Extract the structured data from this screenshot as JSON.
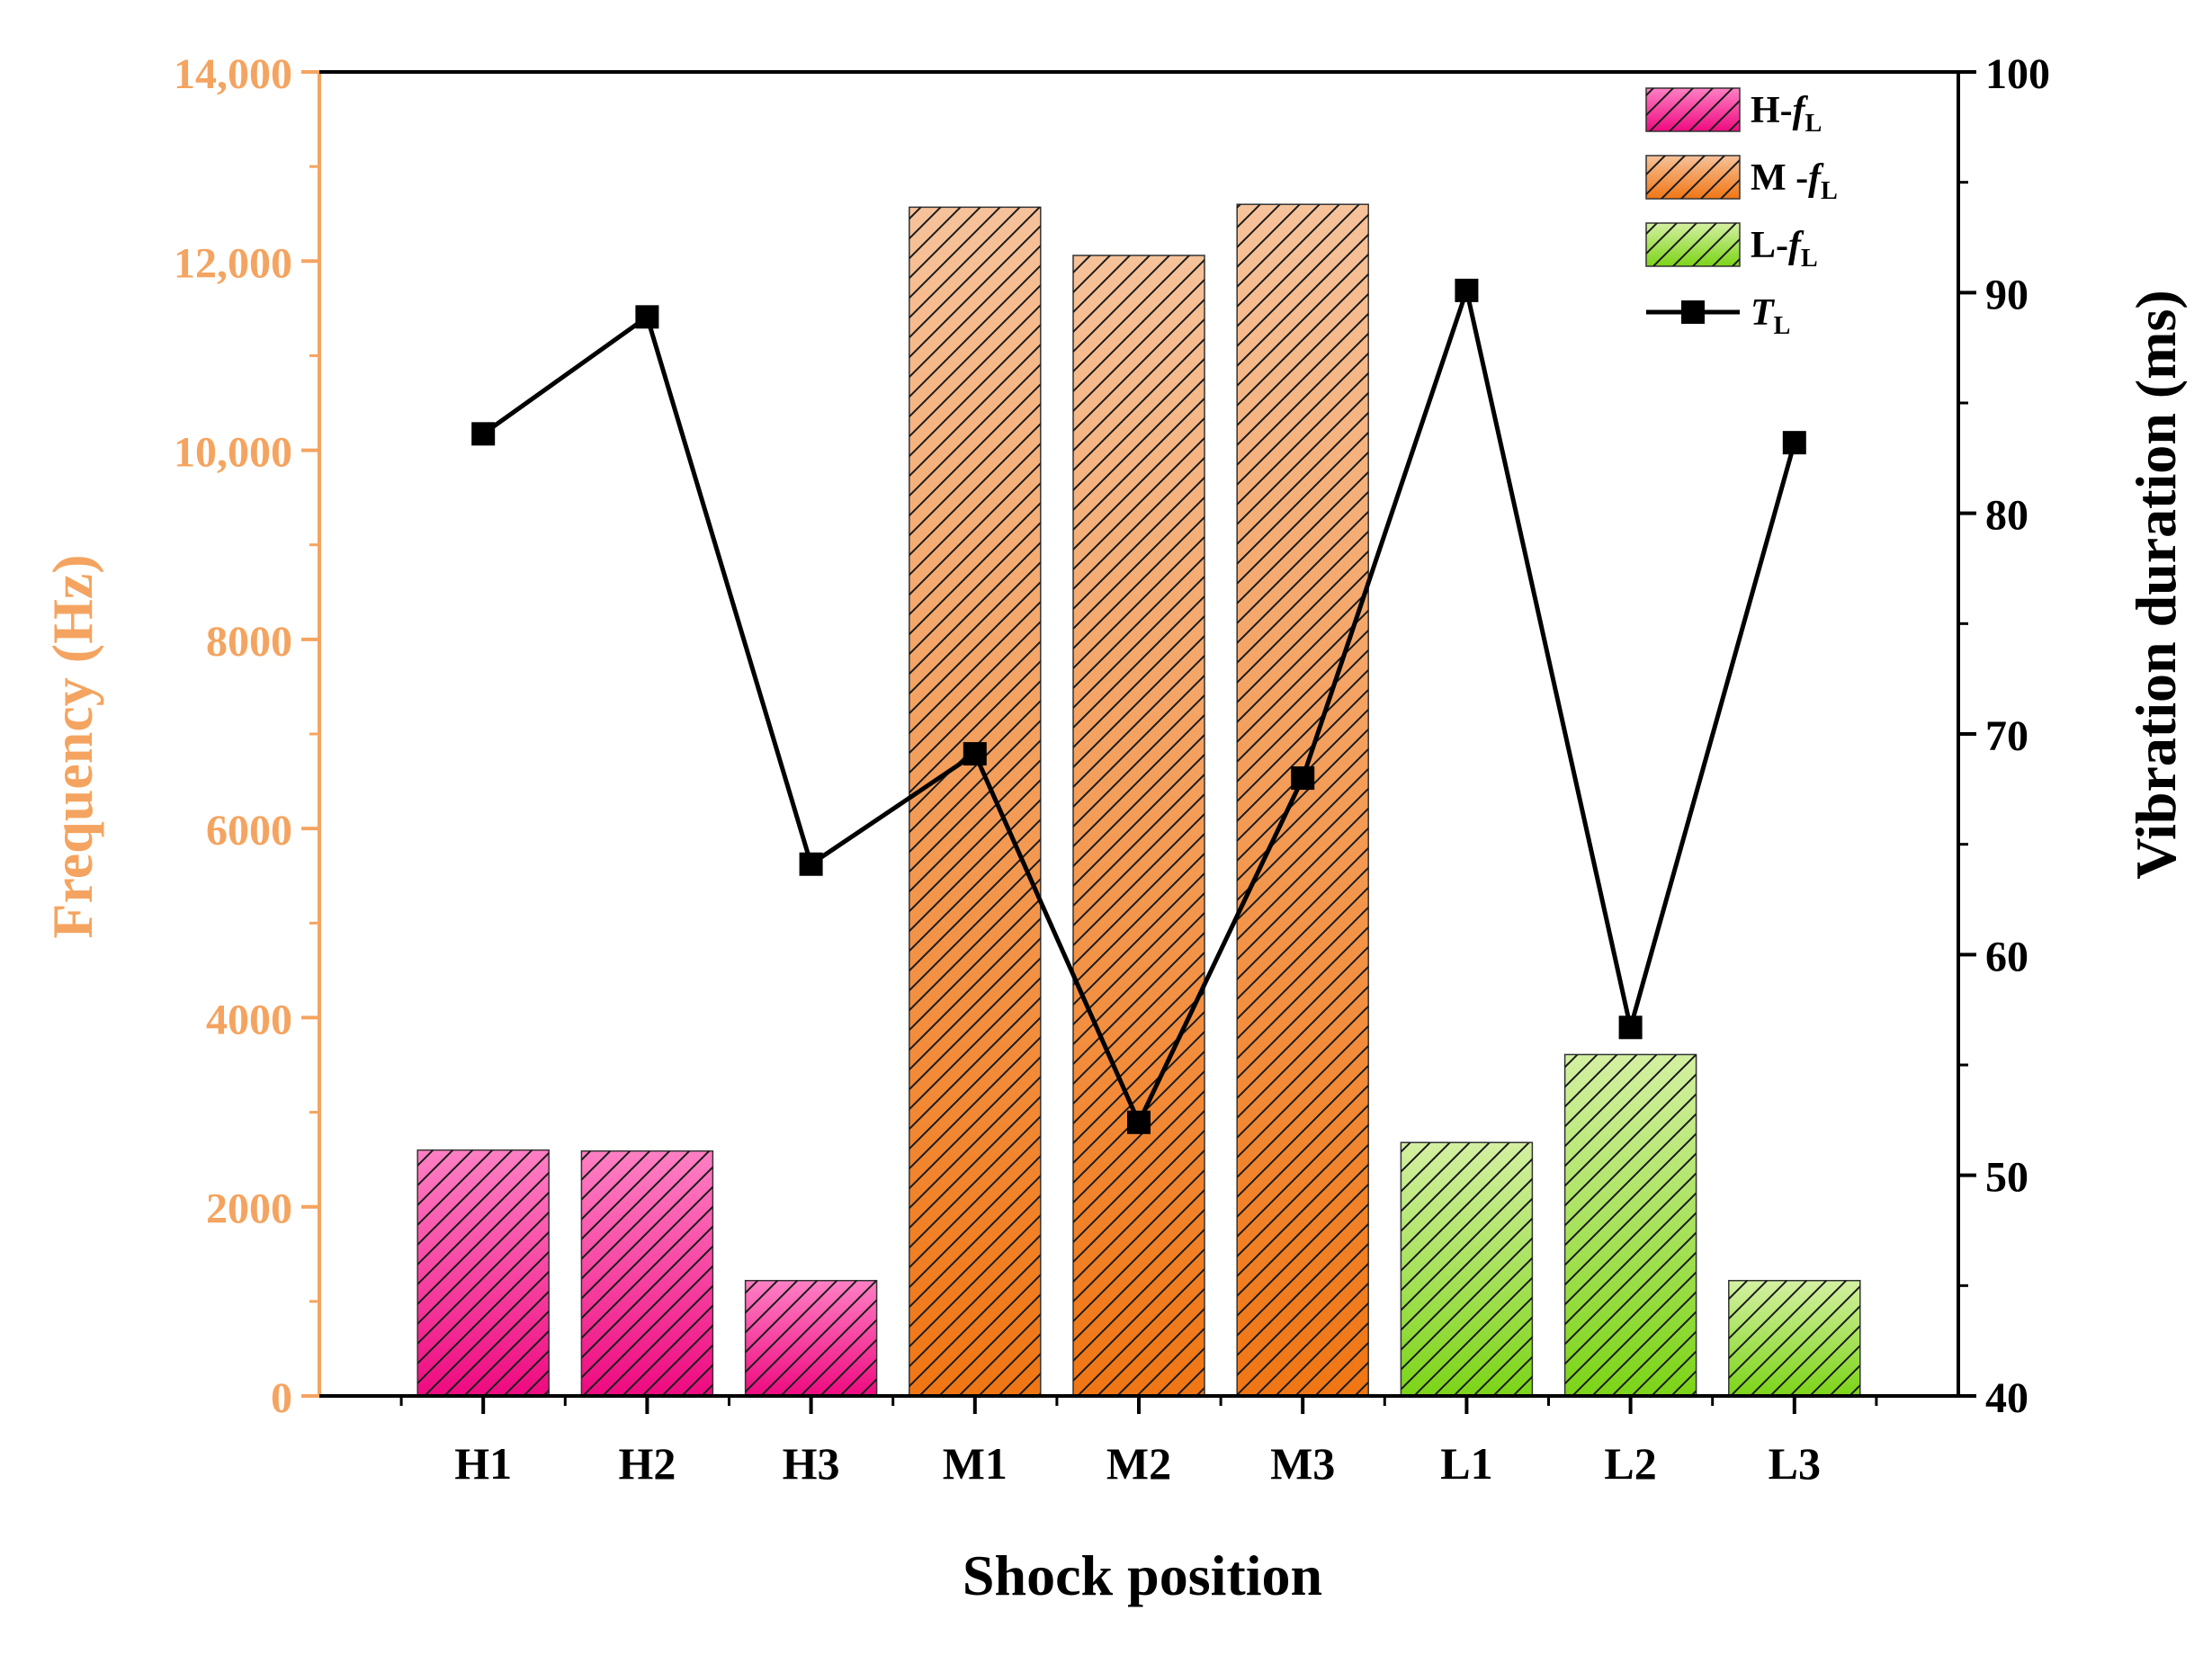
{
  "chart_data": {
    "type": "bar+line",
    "xlabel": "Shock position",
    "categories": [
      "H1",
      "H2",
      "H3",
      "M1",
      "M2",
      "M3",
      "L1",
      "L2",
      "L3"
    ],
    "left_axis": {
      "label": "Frequency (Hz)",
      "ylim": [
        0,
        14000
      ],
      "tick_values": [
        0,
        2000,
        4000,
        6000,
        8000,
        10000,
        12000,
        14000
      ],
      "tick_labels": [
        "0",
        "2000",
        "4000",
        "6000",
        "8000",
        "10,000",
        "12,000",
        "14,000"
      ],
      "color": "#f4a460"
    },
    "right_axis": {
      "label": "Vibration duration (ms)",
      "ylim": [
        40,
        100
      ],
      "tick_values": [
        40,
        50,
        60,
        70,
        80,
        90,
        100
      ],
      "tick_labels": [
        "40",
        "50",
        "60",
        "70",
        "80",
        "90",
        "100"
      ],
      "color": "#000000"
    },
    "bar_series": [
      {
        "name": "H-fL",
        "legend_main": "H-",
        "legend_italic": "f",
        "legend_sub": "L",
        "categories": [
          "H1",
          "H2",
          "H3"
        ],
        "values": [
          2600,
          2590,
          1220
        ],
        "color_top": "#ff80c4",
        "color_bottom": "#ee0a80"
      },
      {
        "name": "M-fL",
        "legend_main": "M -",
        "legend_italic": "f",
        "legend_sub": "L",
        "categories": [
          "M1",
          "M2",
          "M3"
        ],
        "values": [
          12570,
          12060,
          12600
        ],
        "color_top": "#f6c29a",
        "color_bottom": "#f07614"
      },
      {
        "name": "L-fL",
        "legend_main": "L-",
        "legend_italic": "f",
        "legend_sub": "L",
        "categories": [
          "L1",
          "L2",
          "L3"
        ],
        "values": [
          2680,
          3610,
          1220
        ],
        "color_top": "#d4f0a2",
        "color_bottom": "#7cd418"
      }
    ],
    "line_series": {
      "name": "TL",
      "legend_italic": "T",
      "legend_sub": "L",
      "axis": "right",
      "values": [
        83.6,
        88.9,
        64.1,
        69.1,
        52.4,
        68.0,
        90.1,
        56.7,
        83.2
      ],
      "color": "#000000",
      "marker": "square"
    },
    "legend_position": "top-right"
  }
}
